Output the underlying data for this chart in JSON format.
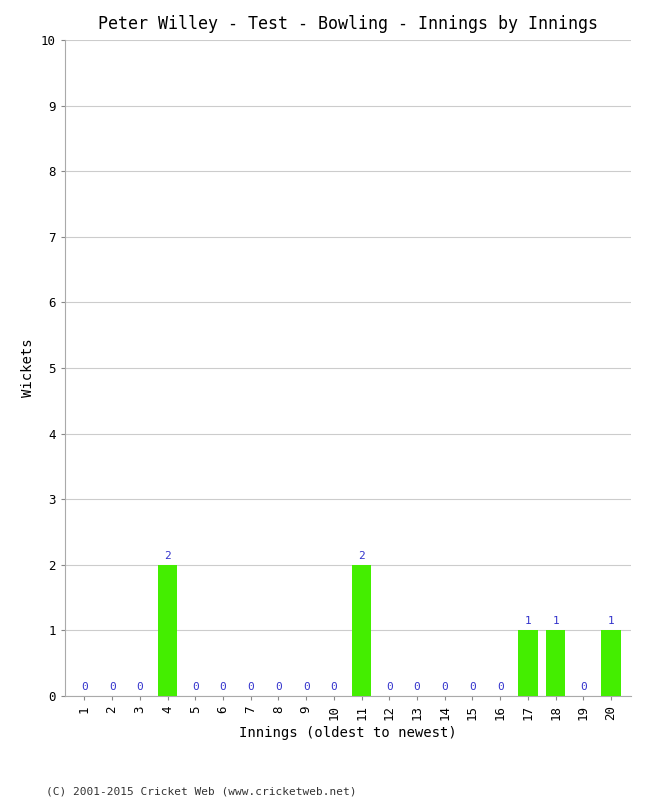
{
  "title": "Peter Willey - Test - Bowling - Innings by Innings",
  "xlabel": "Innings (oldest to newest)",
  "ylabel": "Wickets",
  "innings": [
    1,
    2,
    3,
    4,
    5,
    6,
    7,
    8,
    9,
    10,
    11,
    12,
    13,
    14,
    15,
    16,
    17,
    18,
    19,
    20
  ],
  "wickets": [
    0,
    0,
    0,
    2,
    0,
    0,
    0,
    0,
    0,
    0,
    2,
    0,
    0,
    0,
    0,
    0,
    1,
    1,
    0,
    1
  ],
  "bar_color": "#44ee00",
  "label_color": "#3333cc",
  "ylim": [
    0,
    10
  ],
  "yticks": [
    0,
    1,
    2,
    3,
    4,
    5,
    6,
    7,
    8,
    9,
    10
  ],
  "background_color": "#ffffff",
  "grid_color": "#cccccc",
  "title_fontsize": 12,
  "axis_label_fontsize": 10,
  "tick_fontsize": 9,
  "annotation_fontsize": 8,
  "copyright": "(C) 2001-2015 Cricket Web (www.cricketweb.net)"
}
